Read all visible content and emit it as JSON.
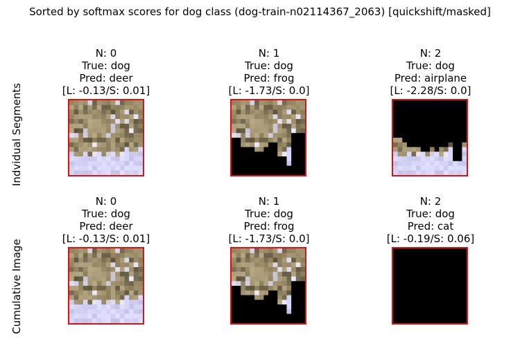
{
  "figure": {
    "title": "Sorted by softmax scores for dog class (dog-train-n02114367_2063) [quickshift/masked]",
    "colors": {
      "frame": "#e01010",
      "mask": "#000000",
      "snow": "#d8d6f0",
      "fur": "#9c8a68"
    }
  },
  "rows": [
    {
      "label": "Indvidual Segments",
      "panels": [
        {
          "n": "N: 0",
          "true": "True: dog",
          "pred": "Pred: deer",
          "scores": "[L: -0.13/S: 0.01]",
          "mask": "none"
        },
        {
          "n": "N: 1",
          "true": "True: dog",
          "pred": "Pred: frog",
          "scores": "[L: -1.73/S: 0.0]",
          "mask": "bottom-left"
        },
        {
          "n": "N: 2",
          "true": "True: dog",
          "pred": "Pred: airplane",
          "scores": "[L: -2.28/S: 0.0]",
          "mask": "top"
        }
      ]
    },
    {
      "label": "Cumulative Image",
      "panels": [
        {
          "n": "N: 0",
          "true": "True: dog",
          "pred": "Pred: deer",
          "scores": "[L: -0.13/S: 0.01]",
          "mask": "none"
        },
        {
          "n": "N: 1",
          "true": "True: dog",
          "pred": "Pred: frog",
          "scores": "[L: -1.73/S: 0.0]",
          "mask": "bottom-left"
        },
        {
          "n": "N: 2",
          "true": "True: dog",
          "pred": "Pred: cat",
          "scores": "[L: -0.19/S: 0.06]",
          "mask": "full"
        }
      ]
    }
  ]
}
